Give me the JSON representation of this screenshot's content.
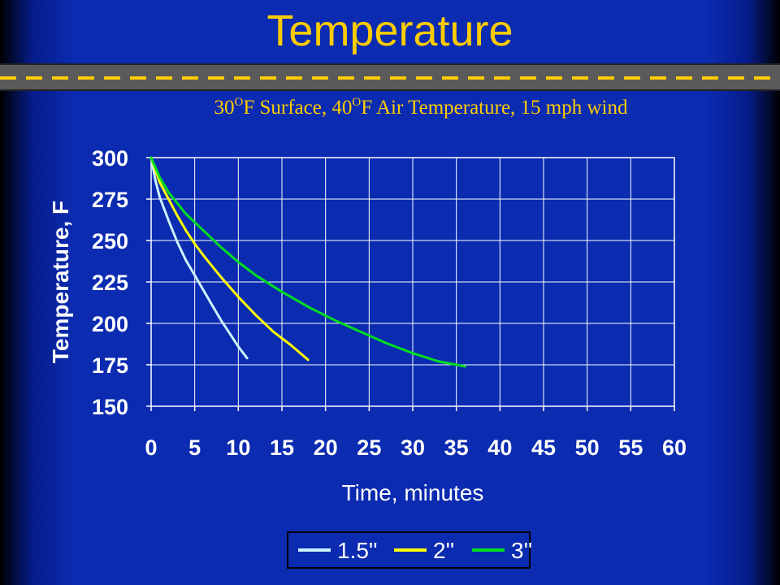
{
  "slide": {
    "title": "Temperature",
    "subtitle_parts": [
      "30",
      "O",
      "F Surface, 40",
      "O",
      "F Air Temperature, 15 mph wind"
    ]
  },
  "chart_data": {
    "type": "line",
    "title": "",
    "xlabel": "Time, minutes",
    "ylabel": "Temperature, F",
    "xlim": [
      0,
      60
    ],
    "ylim": [
      150,
      300
    ],
    "xticks": [
      "0",
      "5",
      "10",
      "15",
      "20",
      "25",
      "30",
      "35",
      "40",
      "45",
      "50",
      "55",
      "60"
    ],
    "yticks": [
      "150",
      "175",
      "200",
      "225",
      "250",
      "275",
      "300"
    ],
    "grid": true,
    "legend_position": "bottom",
    "series": [
      {
        "name": "1.5''",
        "color": "#ccf2ff",
        "x": [
          0,
          0.5,
          1,
          2,
          3,
          4,
          5,
          6,
          7,
          8,
          9,
          10,
          11
        ],
        "y": [
          300,
          286,
          276,
          262,
          249,
          238,
          229,
          220,
          211,
          202,
          194,
          186,
          179
        ]
      },
      {
        "name": "2''",
        "color": "#ffff00",
        "x": [
          0,
          1,
          2,
          3,
          4,
          5,
          6,
          8,
          10,
          12,
          14,
          16,
          18
        ],
        "y": [
          300,
          285,
          275,
          265,
          256,
          248,
          241,
          228,
          216,
          205,
          195,
          187,
          178
        ]
      },
      {
        "name": "3''",
        "color": "#00dd22",
        "x": [
          0,
          1,
          2,
          4,
          6,
          8,
          10,
          12,
          15,
          18,
          21,
          24,
          27,
          30,
          33,
          36
        ],
        "y": [
          300,
          288,
          279,
          266,
          256,
          246,
          237,
          229,
          219,
          210,
          202,
          195,
          188,
          182,
          177,
          174
        ]
      }
    ]
  }
}
